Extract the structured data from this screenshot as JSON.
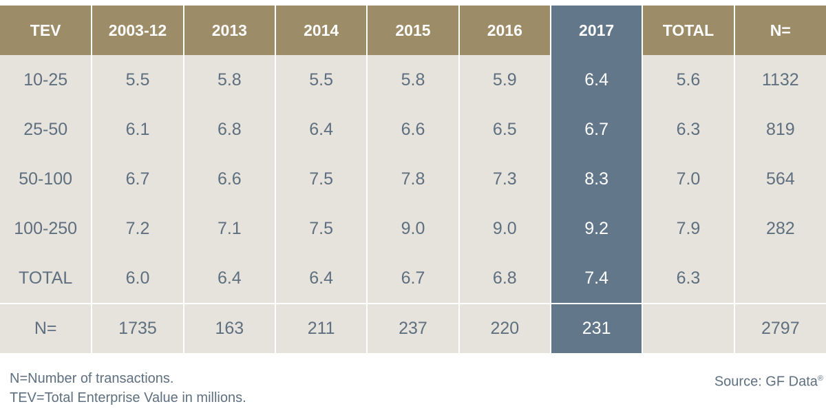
{
  "chart_data": {
    "type": "table",
    "title": "",
    "columns": [
      "TEV",
      "2003-12",
      "2013",
      "2014",
      "2015",
      "2016",
      "2017",
      "TOTAL",
      "N="
    ],
    "highlight_column": "2017",
    "rows": [
      [
        "10-25",
        "5.5",
        "5.8",
        "5.5",
        "5.8",
        "5.9",
        "6.4",
        "5.6",
        "1132"
      ],
      [
        "25-50",
        "6.1",
        "6.8",
        "6.4",
        "6.6",
        "6.5",
        "6.7",
        "6.3",
        "819"
      ],
      [
        "50-100",
        "6.7",
        "6.6",
        "7.5",
        "7.8",
        "7.3",
        "8.3",
        "7.0",
        "564"
      ],
      [
        "100-250",
        "7.2",
        "7.1",
        "7.5",
        "9.0",
        "9.0",
        "9.2",
        "7.9",
        "282"
      ],
      [
        "TOTAL",
        "6.0",
        "6.4",
        "6.4",
        "6.7",
        "6.8",
        "7.4",
        "6.3",
        ""
      ]
    ],
    "n_row": [
      "N=",
      "1735",
      "163",
      "211",
      "237",
      "220",
      "231",
      "",
      "2797"
    ]
  },
  "footnotes": {
    "line1": "N=Number of transactions.",
    "line2": "TEV=Total Enterprise Value in millions."
  },
  "source": {
    "text": "Source: GF Data",
    "mark": "®"
  },
  "colors": {
    "header_bg": "#9d8c68",
    "highlight_bg": "#62788a",
    "cell_bg": "#e6e2dc",
    "text": "#5e6f7f"
  }
}
